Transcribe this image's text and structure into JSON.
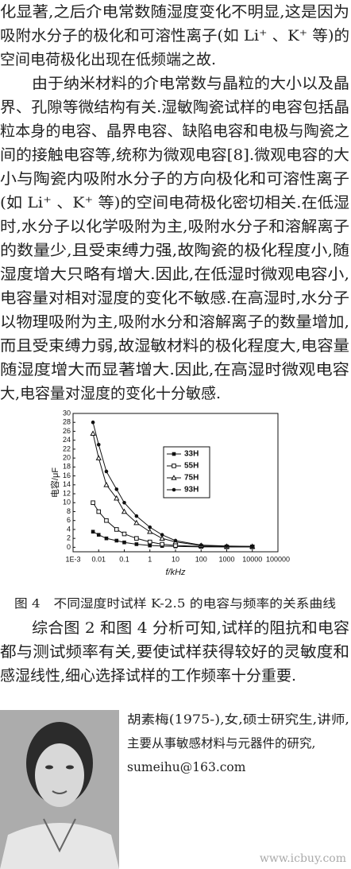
{
  "article": {
    "paragraph_lines": [
      "化显著,之后介电常数随湿度变化不明显,这是因为",
      "吸附水分子的极化和可溶性离子(如 Li⁺ 、K⁺ 等)的",
      "空间电荷极化出现在低频端之故.",
      "由于纳米材料的介电常数与晶粒的大小以及晶",
      "界、孔隙等微结构有关.湿敏陶瓷试样的电容包括晶",
      "粒本身的电容、晶界电容、缺陷电容和电极与陶瓷之",
      "间的接触电容等,统称为微观电容[8].微观电容的大",
      "小与陶瓷内吸附水分子的方向极化和可溶性离子",
      "(如 Li⁺ 、K⁺ 等)的空间电荷极化密切相关.在低湿",
      "时,水分子以化学吸附为主,吸附水分子和溶解离子",
      "的数量少,且受束缚力强,故陶瓷的极化程度小,随",
      "湿度增大只略有增大.因此,在低湿时微观电容小,",
      "电容量对相对湿度的变化不敏感.在高湿时,水分子",
      "以物理吸附为主,吸附水分和溶解离子的数量增加,",
      "而且受束缚力弱,故湿敏材料的极化程度大,电容量",
      "随湿度增大而显著增大.因此,在高湿时微观电容",
      "大,电容量对湿度的变化十分敏感."
    ],
    "caption": "图 4　不同湿度时试样 K-2.5 的电容与频率的关系曲线",
    "conclusion_lines": [
      "综合图 2 和图 4 分析可知,试样的阻抗和电容",
      "都与测试频率有关,要使试样获得较好的灵敏度和",
      "感湿线性,细心选择试样的工作频率十分重要."
    ],
    "bio_lines": [
      "胡素梅(1975-),女,硕士研究生,讲师,",
      "主要从事敏感材料与元器件的研究,",
      "sumeihu@163.com"
    ],
    "watermark": "www.icbuy.com"
  },
  "chart_data": {
    "type": "line",
    "xlabel": "f/kHz",
    "ylabel": "电容/μF",
    "log_x": true,
    "x": [
      0.006,
      0.01,
      0.02,
      0.05,
      0.1,
      0.3,
      1,
      3,
      10,
      100,
      1000,
      10000
    ],
    "series": [
      {
        "name": "33H",
        "marker": "filled-square",
        "color": "#111",
        "values": [
          3.5,
          2.8,
          2,
          1.5,
          1.1,
          0.7,
          0.4,
          0.3,
          0.2,
          0.1,
          0.1,
          0.1
        ]
      },
      {
        "name": "55H",
        "marker": "open-square",
        "color": "#111",
        "values": [
          10,
          8,
          6,
          4,
          3,
          2,
          1.2,
          0.7,
          0.4,
          0.2,
          0.1,
          0.1
        ]
      },
      {
        "name": "75H",
        "marker": "open-triangle",
        "color": "#111",
        "values": [
          25.5,
          20,
          14,
          11,
          8,
          5.5,
          3.5,
          2,
          1.2,
          0.4,
          0.2,
          0.2
        ]
      },
      {
        "name": "93H",
        "marker": "filled-circle",
        "color": "#111",
        "values": [
          28,
          23,
          17,
          13,
          10,
          7,
          4.5,
          2.8,
          1.5,
          0.5,
          0.3,
          0.2
        ]
      }
    ],
    "xlim": [
      0.001,
      100000
    ],
    "xticks": [
      {
        "value": 0.001,
        "label": "1E-3"
      },
      0.01,
      0.1,
      1,
      10,
      100,
      1000,
      10000,
      100000
    ],
    "ylim": [
      -1,
      30
    ],
    "yticks": [
      0,
      2,
      4,
      6,
      8,
      10,
      12,
      14,
      16,
      18,
      20,
      22,
      24,
      26,
      28,
      30
    ]
  }
}
